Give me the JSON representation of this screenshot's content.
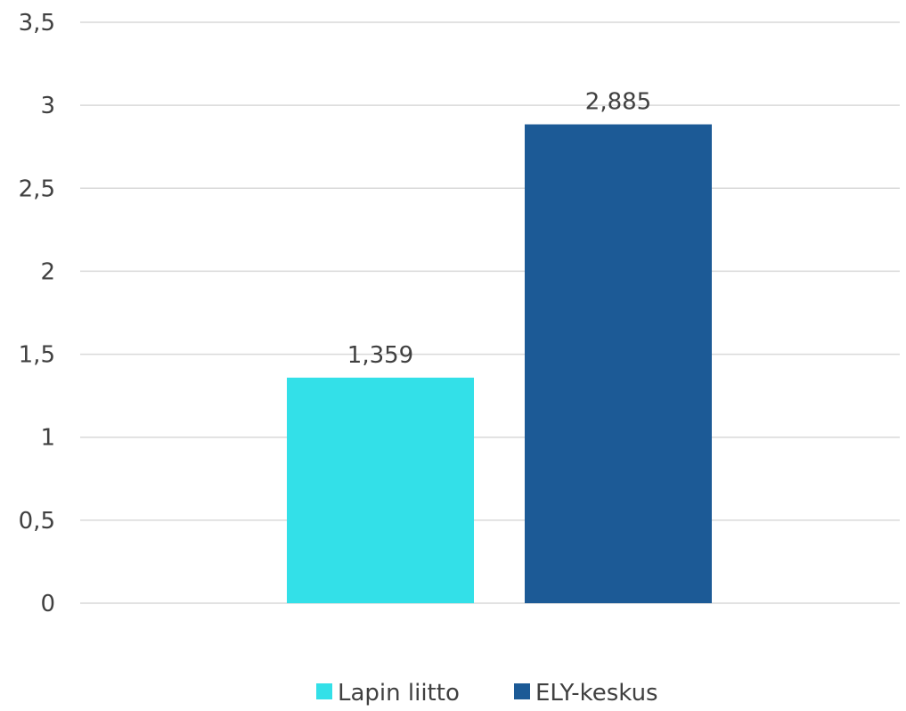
{
  "chart_data": {
    "type": "bar",
    "categories": [
      ""
    ],
    "series": [
      {
        "name": "Lapin liitto",
        "values": [
          1.359
        ],
        "color": "#33e0e8",
        "label": "1,359"
      },
      {
        "name": "ELY-keskus",
        "values": [
          2.885
        ],
        "color": "#1c5a96",
        "label": "2,885"
      }
    ],
    "ylim": [
      0,
      3.5
    ],
    "yticks": [
      {
        "value": 0,
        "label": "0"
      },
      {
        "value": 0.5,
        "label": "0,5"
      },
      {
        "value": 1,
        "label": "1"
      },
      {
        "value": 1.5,
        "label": "1,5"
      },
      {
        "value": 2,
        "label": "2"
      },
      {
        "value": 2.5,
        "label": "2,5"
      },
      {
        "value": 3,
        "label": "3"
      },
      {
        "value": 3.5,
        "label": "3,5"
      }
    ],
    "grid": true,
    "legend_position": "bottom",
    "title": "",
    "xlabel": "",
    "ylabel": ""
  }
}
